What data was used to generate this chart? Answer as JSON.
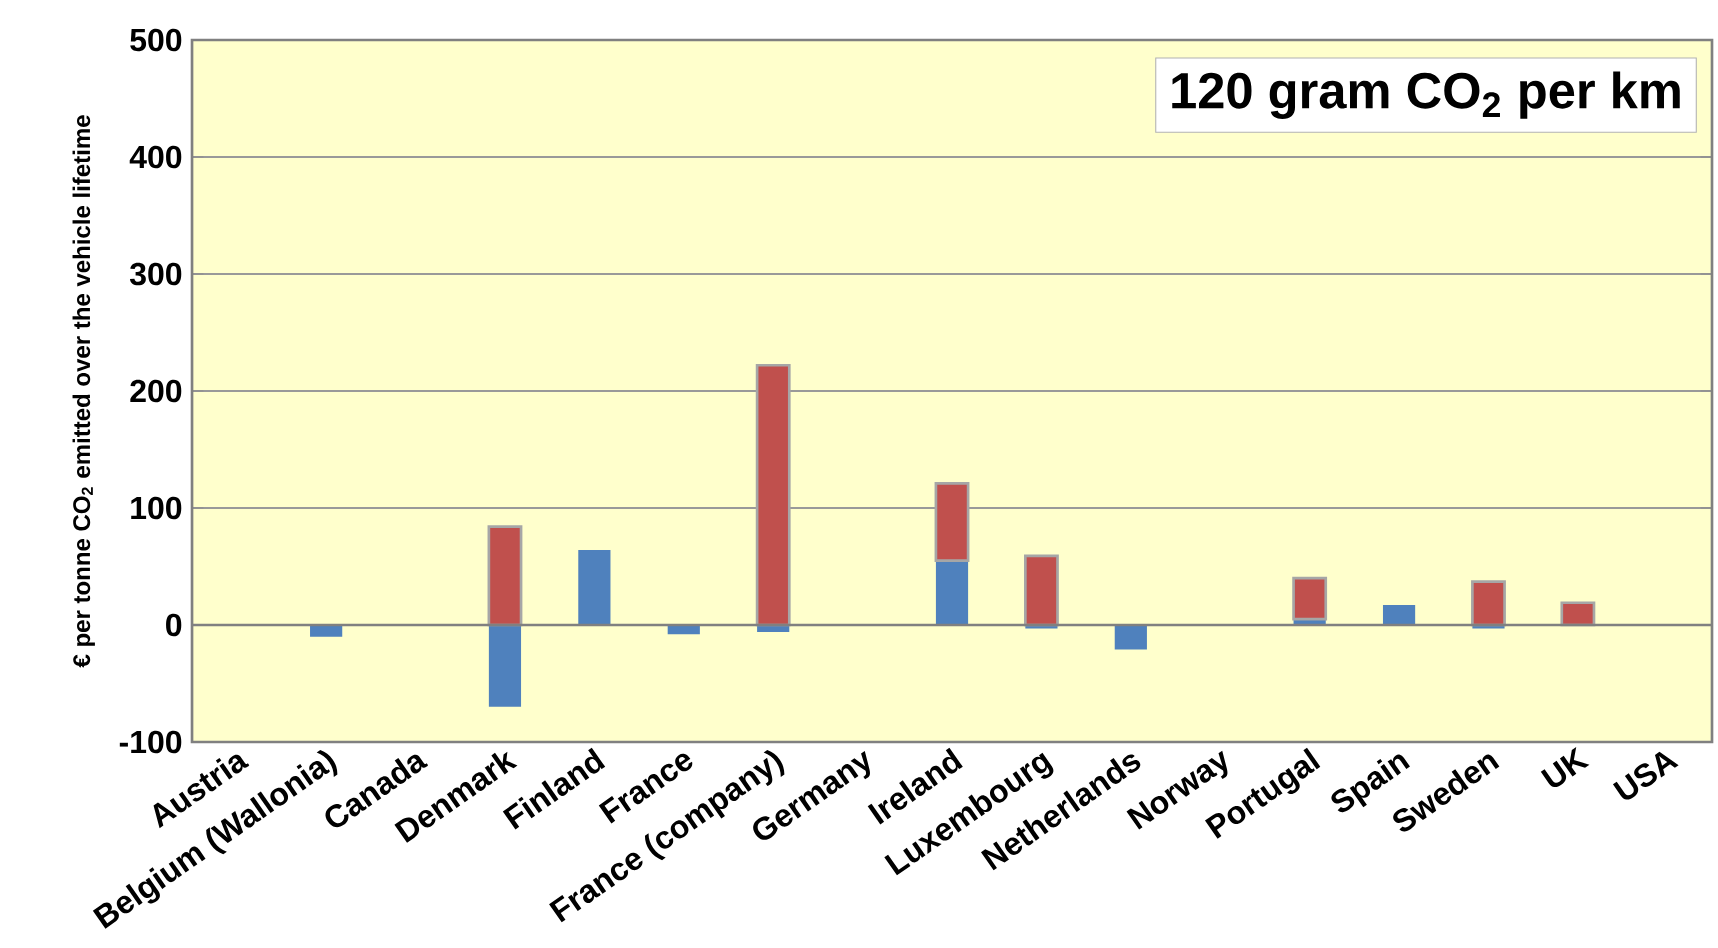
{
  "chart_data": {
    "type": "bar",
    "stacked": true,
    "title": "120 gram CO$_{2}$ per km",
    "ylabel": "€ per tonne CO$_{2}$ emitted over the vehicle lifetime",
    "categories": [
      "Austria",
      "Belgium (Wallonia)",
      "Canada",
      "Denmark",
      "Finland",
      "France",
      "France (company)",
      "Germany",
      "Ireland",
      "Luxembourg",
      "Netherlands",
      "Norway",
      "Portugal",
      "Spain",
      "Sweden",
      "UK",
      "USA"
    ],
    "series": [
      {
        "color": "#4f81bd",
        "values": [
          null,
          -10,
          null,
          -70,
          64,
          -8,
          -6,
          null,
          55,
          -3,
          -21,
          null,
          5,
          17,
          -3,
          null,
          null
        ]
      },
      {
        "color": "#c0504d",
        "values": [
          null,
          null,
          null,
          84,
          null,
          null,
          222,
          null,
          66,
          59,
          null,
          null,
          35,
          null,
          37,
          19,
          null
        ]
      }
    ],
    "ylim": [
      -100,
      500
    ],
    "yticks": [
      -100,
      0,
      100,
      200,
      300,
      400,
      500
    ],
    "grid": "y"
  }
}
